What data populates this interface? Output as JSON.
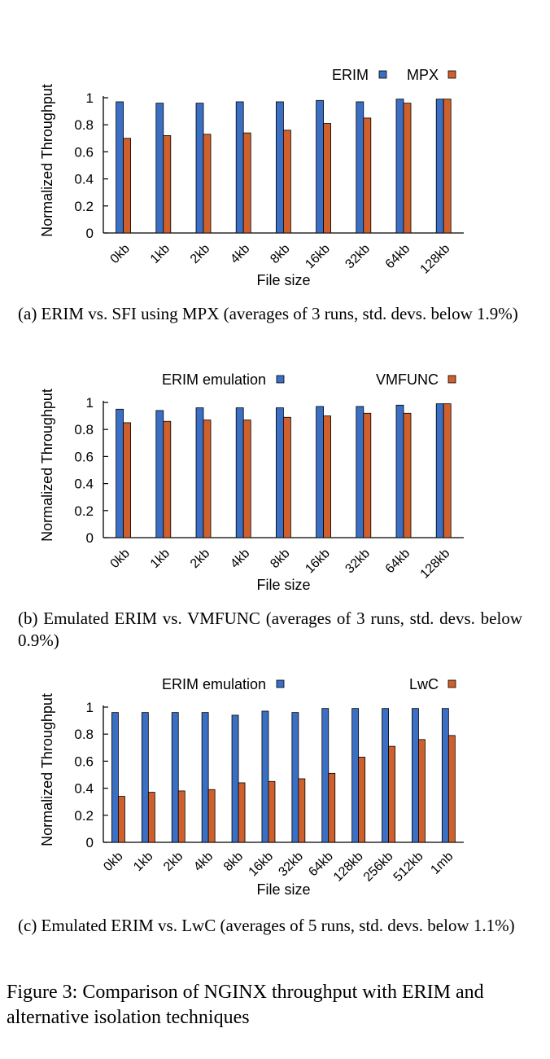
{
  "chart_data": [
    {
      "type": "bar",
      "ylabel": "Normalized Throughput",
      "xlabel": "File size",
      "ylim": [
        0,
        1
      ],
      "yticks": [
        "0",
        "0.2",
        "0.4",
        "0.6",
        "0.8",
        "1"
      ],
      "categories": [
        "0kb",
        "1kb",
        "2kb",
        "4kb",
        "8kb",
        "16kb",
        "32kb",
        "64kb",
        "128kb"
      ],
      "series": [
        {
          "name": "ERIM",
          "color": "#3b6fc4",
          "values": [
            0.97,
            0.96,
            0.96,
            0.97,
            0.97,
            0.98,
            0.97,
            0.99,
            0.99
          ]
        },
        {
          "name": "MPX",
          "color": "#d0602b",
          "values": [
            0.7,
            0.72,
            0.73,
            0.74,
            0.76,
            0.81,
            0.85,
            0.96,
            0.99
          ]
        }
      ],
      "legend": "top-right",
      "caption": "(a) ERIM vs. SFI using MPX (averages of 3 runs, std. devs. below 1.9%)"
    },
    {
      "type": "bar",
      "ylabel": "Normalized Throughput",
      "xlabel": "File size",
      "ylim": [
        0,
        1
      ],
      "yticks": [
        "0",
        "0.2",
        "0.4",
        "0.6",
        "0.8",
        "1"
      ],
      "categories": [
        "0kb",
        "1kb",
        "2kb",
        "4kb",
        "8kb",
        "16kb",
        "32kb",
        "64kb",
        "128kb"
      ],
      "series": [
        {
          "name": "ERIM emulation",
          "color": "#3b6fc4",
          "values": [
            0.95,
            0.94,
            0.96,
            0.96,
            0.96,
            0.97,
            0.97,
            0.98,
            0.99
          ]
        },
        {
          "name": "VMFUNC",
          "color": "#d0602b",
          "values": [
            0.85,
            0.86,
            0.87,
            0.87,
            0.89,
            0.9,
            0.92,
            0.92,
            0.99
          ]
        }
      ],
      "legend": "top",
      "caption": "(b) Emulated ERIM vs. VMFUNC (averages of 3 runs, std. devs. below 0.9%)"
    },
    {
      "type": "bar",
      "ylabel": "Normalized Throughput",
      "xlabel": "File size",
      "ylim": [
        0,
        1
      ],
      "yticks": [
        "0",
        "0.2",
        "0.4",
        "0.6",
        "0.8",
        "1"
      ],
      "categories": [
        "0kb",
        "1kb",
        "2kb",
        "4kb",
        "8kb",
        "16kb",
        "32kb",
        "64kb",
        "128kb",
        "256kb",
        "512kb",
        "1mb"
      ],
      "series": [
        {
          "name": "ERIM emulation",
          "color": "#3b6fc4",
          "values": [
            0.96,
            0.96,
            0.96,
            0.96,
            0.94,
            0.97,
            0.96,
            0.99,
            0.99,
            0.99,
            0.99,
            0.99
          ]
        },
        {
          "name": "LwC",
          "color": "#d0602b",
          "values": [
            0.34,
            0.37,
            0.38,
            0.39,
            0.44,
            0.45,
            0.47,
            0.51,
            0.63,
            0.71,
            0.76,
            0.79
          ]
        }
      ],
      "legend": "top",
      "caption": "(c) Emulated ERIM vs. LwC (averages of 5 runs, std. devs. below 1.1%)"
    }
  ],
  "figure_caption": "Figure 3: Comparison of NGINX throughput with ERIM and alternative isolation techniques"
}
